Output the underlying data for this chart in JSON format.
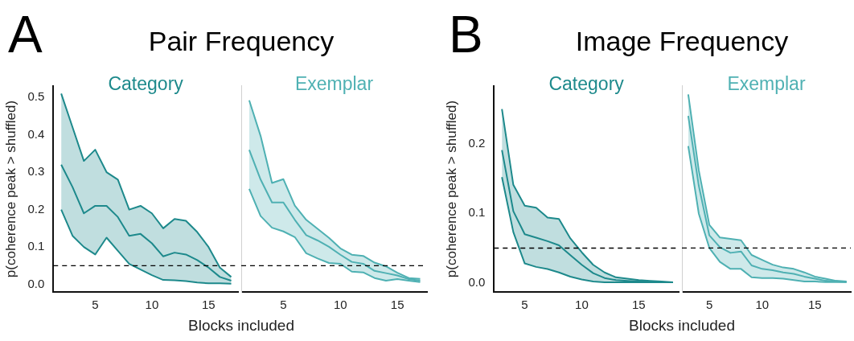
{
  "chart_data": [
    {
      "type": "line",
      "title": "Pair Frequency",
      "annotations": [
        "A"
      ],
      "xlabel": "Blocks included",
      "ylabel": "p(coherence peak > shuffled)",
      "xlim": [
        1.3,
        17.6
      ],
      "xticks": [
        5,
        10,
        15
      ],
      "ylim": [
        -0.02,
        0.53
      ],
      "yticks": [
        {
          "value": 0,
          "label": "0.0"
        },
        {
          "value": 0.1,
          "label": "0.1"
        },
        {
          "value": 0.2,
          "label": "0.2"
        },
        {
          "value": 0.3,
          "label": "0.3"
        },
        {
          "value": 0.4,
          "label": "0.4"
        },
        {
          "value": 0.5,
          "label": "0.5"
        }
      ],
      "ref_lines": [
        {
          "axis": "y",
          "value": 0.05,
          "line_style": "dashed",
          "color": "#000000"
        }
      ],
      "series": [
        {
          "name": "Category",
          "color": "#1e8a8c",
          "x": [
            2,
            3,
            4,
            5,
            6,
            7,
            8,
            9,
            10,
            11,
            12,
            13,
            14,
            15,
            16,
            17
          ],
          "values": [
            0.32,
            0.26,
            0.19,
            0.21,
            0.21,
            0.18,
            0.13,
            0.135,
            0.11,
            0.075,
            0.085,
            0.08,
            0.065,
            0.045,
            0.02,
            0.01
          ],
          "lower": [
            0.2,
            0.13,
            0.1,
            0.08,
            0.125,
            0.09,
            0.055,
            0.04,
            0.025,
            0.012,
            0.011,
            0.009,
            0.005,
            0.003,
            0.003,
            0.002
          ],
          "upper": [
            0.51,
            0.42,
            0.33,
            0.36,
            0.3,
            0.28,
            0.2,
            0.21,
            0.19,
            0.15,
            0.175,
            0.17,
            0.14,
            0.1,
            0.045,
            0.02
          ]
        },
        {
          "type": "line",
          "color": "#1e8a8c",
          "x": [
            2,
            3,
            4,
            5,
            6,
            7,
            8,
            9,
            10,
            11,
            12,
            13,
            14,
            15,
            16,
            17
          ],
          "values": [
            0.2,
            0.13,
            0.1,
            0.08,
            0.125,
            0.09,
            0.055,
            0.04,
            0.025,
            0.012,
            0.011,
            0.009,
            0.005,
            0.003,
            0.003,
            0.002
          ]
        },
        {
          "type": "line",
          "color": "#1e8a8c",
          "x": [
            2,
            3,
            4,
            5,
            6,
            7,
            8,
            9,
            10,
            11,
            12,
            13,
            14,
            15,
            16,
            17
          ],
          "values": [
            0.51,
            0.42,
            0.33,
            0.36,
            0.3,
            0.28,
            0.2,
            0.21,
            0.19,
            0.15,
            0.175,
            0.17,
            0.14,
            0.1,
            0.045,
            0.02
          ]
        }
      ]
    },
    {
      "type": "line",
      "xlim": [
        1.3,
        17.6
      ],
      "xticks": [
        5,
        10,
        15
      ],
      "ylim": [
        -0.02,
        0.53
      ],
      "tick_labels": "x",
      "ref_lines": [
        {
          "axis": "y",
          "value": 0.05,
          "line_style": "dashed",
          "color": "#000000"
        }
      ],
      "series": [
        {
          "name": "Exemplar",
          "color": "#4fb1b3",
          "x": [
            2,
            3,
            4,
            5,
            6,
            7,
            8,
            9,
            10,
            11,
            12,
            13,
            14,
            15,
            16,
            17
          ],
          "values": [
            0.358,
            0.279,
            0.218,
            0.218,
            0.172,
            0.131,
            0.117,
            0.1,
            0.079,
            0.06,
            0.055,
            0.036,
            0.03,
            0.024,
            0.014,
            0.01
          ],
          "lower": [
            0.254,
            0.182,
            0.151,
            0.141,
            0.126,
            0.083,
            0.069,
            0.057,
            0.055,
            0.034,
            0.032,
            0.017,
            0.01,
            0.014,
            0.01,
            0.006
          ],
          "upper": [
            0.49,
            0.395,
            0.27,
            0.28,
            0.21,
            0.172,
            0.148,
            0.124,
            0.096,
            0.079,
            0.076,
            0.058,
            0.048,
            0.031,
            0.017,
            0.015
          ]
        },
        {
          "type": "line",
          "color": "#4fb1b3",
          "x": [
            2,
            3,
            4,
            5,
            6,
            7,
            8,
            9,
            10,
            11,
            12,
            13,
            14,
            15,
            16,
            17
          ],
          "values": [
            0.254,
            0.182,
            0.151,
            0.141,
            0.126,
            0.083,
            0.069,
            0.057,
            0.055,
            0.034,
            0.032,
            0.017,
            0.01,
            0.014,
            0.01,
            0.006
          ]
        },
        {
          "type": "line",
          "color": "#4fb1b3",
          "x": [
            2,
            3,
            4,
            5,
            6,
            7,
            8,
            9,
            10,
            11,
            12,
            13,
            14,
            15,
            16,
            17
          ],
          "values": [
            0.49,
            0.395,
            0.27,
            0.28,
            0.21,
            0.172,
            0.148,
            0.124,
            0.096,
            0.079,
            0.076,
            0.058,
            0.048,
            0.031,
            0.017,
            0.015
          ]
        }
      ]
    },
    {
      "type": "line",
      "title": "Image Frequency",
      "annotations": [
        "B"
      ],
      "xlabel": "Blocks included",
      "ylabel": "p(coherence peak > shuffled)",
      "xlim": [
        2.3,
        18.5
      ],
      "xticks": [
        5,
        10,
        15
      ],
      "ylim": [
        -0.013,
        0.283
      ],
      "yticks": [
        {
          "value": 0,
          "label": "0.0"
        },
        {
          "value": 0.1,
          "label": "0.1"
        },
        {
          "value": 0.2,
          "label": "0.2"
        }
      ],
      "ref_lines": [
        {
          "axis": "y",
          "value": 0.05,
          "line_style": "dashed",
          "color": "#000000"
        }
      ],
      "series": [
        {
          "name": "Category",
          "color": "#1e8a8c",
          "x": [
            3,
            4,
            5,
            6,
            7,
            8,
            9,
            10,
            11,
            12,
            13,
            14,
            15,
            16,
            17,
            18
          ],
          "values": [
            0.191,
            0.103,
            0.07,
            0.065,
            0.06,
            0.054,
            0.04,
            0.026,
            0.014,
            0.007,
            0.004,
            0.003,
            0.002,
            0.002,
            0.001,
            0.001
          ],
          "lower": [
            0.152,
            0.073,
            0.028,
            0.023,
            0.02,
            0.015,
            0.009,
            0.005,
            0.002,
            0.001,
            0.001,
            0.001,
            0.001,
            0.001,
            0.001,
            0.001
          ],
          "upper": [
            0.25,
            0.141,
            0.111,
            0.108,
            0.094,
            0.092,
            0.064,
            0.044,
            0.026,
            0.015,
            0.008,
            0.006,
            0.004,
            0.003,
            0.002,
            0.001
          ]
        },
        {
          "type": "line",
          "color": "#1e8a8c",
          "x": [
            3,
            4,
            5,
            6,
            7,
            8,
            9,
            10,
            11,
            12,
            13,
            14,
            15,
            16,
            17,
            18
          ],
          "values": [
            0.152,
            0.073,
            0.028,
            0.023,
            0.02,
            0.015,
            0.009,
            0.005,
            0.002,
            0.001,
            0.001,
            0.001,
            0.001,
            0.001,
            0.001,
            0.001
          ]
        },
        {
          "type": "line",
          "color": "#1e8a8c",
          "x": [
            3,
            4,
            5,
            6,
            7,
            8,
            9,
            10,
            11,
            12,
            13,
            14,
            15,
            16,
            17,
            18
          ],
          "values": [
            0.25,
            0.141,
            0.111,
            0.108,
            0.094,
            0.092,
            0.064,
            0.044,
            0.026,
            0.015,
            0.008,
            0.006,
            0.004,
            0.003,
            0.002,
            0.001
          ]
        }
      ]
    },
    {
      "type": "line",
      "xlim": [
        2.4,
        18.4
      ],
      "xticks": [
        5,
        10,
        15
      ],
      "ylim": [
        -0.013,
        0.283
      ],
      "tick_labels": "x",
      "ref_lines": [
        {
          "axis": "y",
          "value": 0.05,
          "line_style": "dashed",
          "color": "#000000"
        }
      ],
      "series": [
        {
          "name": "Exemplar",
          "color": "#4fb1b3",
          "x": [
            3,
            4,
            5,
            6,
            7,
            8,
            9,
            10,
            11,
            12,
            13,
            14,
            15,
            16,
            17,
            18
          ],
          "values": [
            0.239,
            0.139,
            0.068,
            0.051,
            0.043,
            0.045,
            0.025,
            0.02,
            0.018,
            0.015,
            0.013,
            0.009,
            0.006,
            0.003,
            0.002,
            0.001
          ],
          "lower": [
            0.196,
            0.099,
            0.05,
            0.03,
            0.02,
            0.02,
            0.008,
            0.007,
            0.007,
            0.006,
            0.004,
            0.002,
            0.002,
            0.001,
            0.001,
            0.001
          ],
          "upper": [
            0.27,
            0.161,
            0.083,
            0.065,
            0.063,
            0.061,
            0.04,
            0.033,
            0.026,
            0.022,
            0.02,
            0.015,
            0.009,
            0.006,
            0.003,
            0.002
          ]
        },
        {
          "type": "line",
          "color": "#4fb1b3",
          "x": [
            3,
            4,
            5,
            6,
            7,
            8,
            9,
            10,
            11,
            12,
            13,
            14,
            15,
            16,
            17,
            18
          ],
          "values": [
            0.196,
            0.099,
            0.05,
            0.03,
            0.02,
            0.02,
            0.008,
            0.007,
            0.007,
            0.006,
            0.004,
            0.002,
            0.002,
            0.001,
            0.001,
            0.001
          ]
        },
        {
          "type": "line",
          "color": "#4fb1b3",
          "x": [
            3,
            4,
            5,
            6,
            7,
            8,
            9,
            10,
            11,
            12,
            13,
            14,
            15,
            16,
            17,
            18
          ],
          "values": [
            0.27,
            0.161,
            0.083,
            0.065,
            0.063,
            0.061,
            0.04,
            0.033,
            0.026,
            0.022,
            0.02,
            0.015,
            0.009,
            0.006,
            0.003,
            0.002
          ]
        }
      ]
    }
  ]
}
